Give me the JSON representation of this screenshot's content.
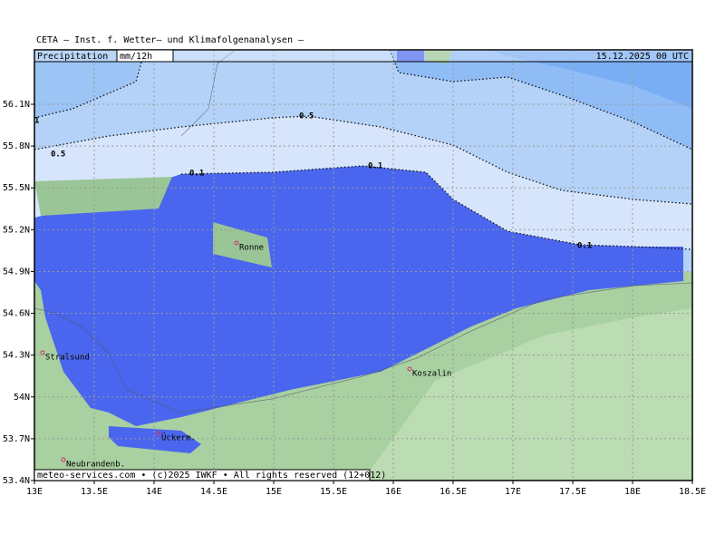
{
  "header": {
    "title": "CETA — Inst. f. Wetter— und Klimafolgenanalysen —",
    "product": "Precipitation",
    "unit": "mm/12h",
    "datetime": "15.12.2025 00 UTC"
  },
  "axes": {
    "latitudes": [
      "53.4N",
      "53.7N",
      "54N",
      "54.3N",
      "54.6N",
      "54.9N",
      "55.2N",
      "55.5N",
      "55.8N",
      "56.1N"
    ],
    "longitudes": [
      "13E",
      "13.5E",
      "14E",
      "14.5E",
      "15E",
      "15.5E",
      "16E",
      "16.5E",
      "17E",
      "17.5E",
      "18E",
      "18.5E"
    ]
  },
  "contour_labels": [
    "1",
    "0.5",
    "0.5",
    "0.1",
    "0.1",
    "0.1"
  ],
  "cities": [
    "Ronne",
    "Stralsund",
    "Koszalin",
    "Ückerm.",
    "Neubrandenb."
  ],
  "footer": "meteo-services.com • (c)2025 IWKF • All rights reserved (12+012)"
}
